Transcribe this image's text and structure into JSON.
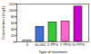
{
  "chart_data": {
    "type": "bar",
    "x_label": "Type of treatment",
    "y_label": "Concentration (mg/L)",
    "categories": [
      "0",
      "10,000",
      "5 PPG",
      "7 PPG",
      "10 PPG"
    ],
    "values": [
      5,
      48,
      62,
      65,
      112
    ],
    "colors": [
      "#ffffff",
      "#3f6fd8",
      "#33cc33",
      "#ff66cc",
      "#cc00cc"
    ],
    "ylim": [
      0,
      120
    ],
    "yticks": [
      0,
      20,
      40,
      60,
      80,
      100,
      120
    ],
    "grid": false
  }
}
